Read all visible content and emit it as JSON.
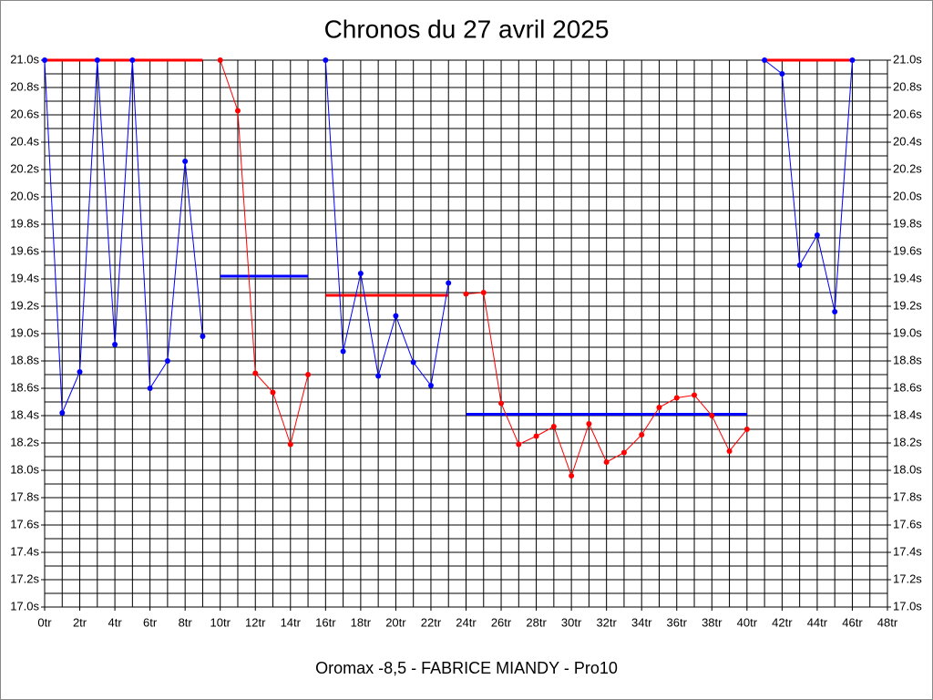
{
  "chart_data": {
    "type": "line",
    "title": "Chronos du 27 avril 2025",
    "subtitle": "Oromax -8,5 - FABRICE MIANDY - Pro10",
    "xlim": [
      0,
      48
    ],
    "ylim": [
      17.0,
      21.0
    ],
    "xticks": [
      {
        "value": 0,
        "label": "0tr"
      },
      {
        "value": 2,
        "label": "2tr"
      },
      {
        "value": 4,
        "label": "4tr"
      },
      {
        "value": 6,
        "label": "6tr"
      },
      {
        "value": 8,
        "label": "8tr"
      },
      {
        "value": 10,
        "label": "10tr"
      },
      {
        "value": 12,
        "label": "12tr"
      },
      {
        "value": 14,
        "label": "14tr"
      },
      {
        "value": 16,
        "label": "16tr"
      },
      {
        "value": 18,
        "label": "18tr"
      },
      {
        "value": 20,
        "label": "20tr"
      },
      {
        "value": 22,
        "label": "22tr"
      },
      {
        "value": 24,
        "label": "24tr"
      },
      {
        "value": 26,
        "label": "26tr"
      },
      {
        "value": 28,
        "label": "28tr"
      },
      {
        "value": 30,
        "label": "30tr"
      },
      {
        "value": 32,
        "label": "32tr"
      },
      {
        "value": 34,
        "label": "34tr"
      },
      {
        "value": 36,
        "label": "36tr"
      },
      {
        "value": 38,
        "label": "38tr"
      },
      {
        "value": 40,
        "label": "40tr"
      },
      {
        "value": 42,
        "label": "42tr"
      },
      {
        "value": 44,
        "label": "44tr"
      },
      {
        "value": 46,
        "label": "46tr"
      },
      {
        "value": 48,
        "label": "48tr"
      }
    ],
    "yticks": [
      {
        "value": 17.0,
        "label": "17.0s"
      },
      {
        "value": 17.2,
        "label": "17.2s"
      },
      {
        "value": 17.4,
        "label": "17.4s"
      },
      {
        "value": 17.6,
        "label": "17.6s"
      },
      {
        "value": 17.8,
        "label": "17.8s"
      },
      {
        "value": 18.0,
        "label": "18.0s"
      },
      {
        "value": 18.2,
        "label": "18.2s"
      },
      {
        "value": 18.4,
        "label": "18.4s"
      },
      {
        "value": 18.6,
        "label": "18.6s"
      },
      {
        "value": 18.8,
        "label": "18.8s"
      },
      {
        "value": 19.0,
        "label": "19.0s"
      },
      {
        "value": 19.2,
        "label": "19.2s"
      },
      {
        "value": 19.4,
        "label": "19.4s"
      },
      {
        "value": 19.6,
        "label": "19.6s"
      },
      {
        "value": 19.8,
        "label": "19.8s"
      },
      {
        "value": 20.0,
        "label": "20.0s"
      },
      {
        "value": 20.2,
        "label": "20.2s"
      },
      {
        "value": 20.4,
        "label": "20.4s"
      },
      {
        "value": 20.6,
        "label": "20.6s"
      },
      {
        "value": 20.8,
        "label": "20.8s"
      },
      {
        "value": 21.0,
        "label": "21.0s"
      }
    ],
    "grid": true,
    "series": [
      {
        "color": "#0000ff",
        "x": [
          0,
          1,
          2,
          3,
          4,
          5,
          6,
          7,
          8,
          9
        ],
        "values": [
          21.0,
          18.42,
          18.72,
          21.0,
          18.92,
          21.0,
          18.6,
          18.8,
          20.26,
          18.98
        ]
      },
      {
        "color": "#ff0000",
        "x": [
          10,
          11,
          12,
          13,
          14,
          15
        ],
        "values": [
          21.0,
          20.63,
          18.71,
          18.57,
          18.19,
          18.7
        ]
      },
      {
        "color": "#0000ff",
        "x": [
          16,
          17,
          18,
          19,
          20,
          21,
          22,
          23
        ],
        "values": [
          21.0,
          18.87,
          19.44,
          18.69,
          19.13,
          18.79,
          18.62,
          19.37
        ]
      },
      {
        "color": "#ff0000",
        "x": [
          24,
          25,
          26,
          27,
          28,
          29,
          30,
          31,
          32,
          33,
          34,
          35,
          36,
          37,
          38,
          39,
          40
        ],
        "values": [
          19.29,
          19.3,
          18.49,
          18.19,
          18.25,
          18.32,
          17.96,
          18.34,
          18.06,
          18.13,
          18.26,
          18.46,
          18.53,
          18.55,
          18.4,
          18.14,
          18.3
        ]
      },
      {
        "color": "#0000ff",
        "x": [
          41,
          42,
          43,
          44,
          45,
          46
        ],
        "values": [
          21.0,
          20.9,
          19.5,
          19.72,
          19.16,
          21.0
        ]
      }
    ],
    "averages": [
      {
        "color": "#ff0000",
        "x": [
          0,
          9
        ],
        "value": 21.0
      },
      {
        "color": "#0000ff",
        "x": [
          10,
          15
        ],
        "value": 19.42
      },
      {
        "color": "#ff0000",
        "x": [
          16,
          23
        ],
        "value": 19.28
      },
      {
        "color": "#0000ff",
        "x": [
          24,
          40
        ],
        "value": 18.41
      },
      {
        "color": "#ff0000",
        "x": [
          41,
          46
        ],
        "value": 21.0
      }
    ]
  }
}
